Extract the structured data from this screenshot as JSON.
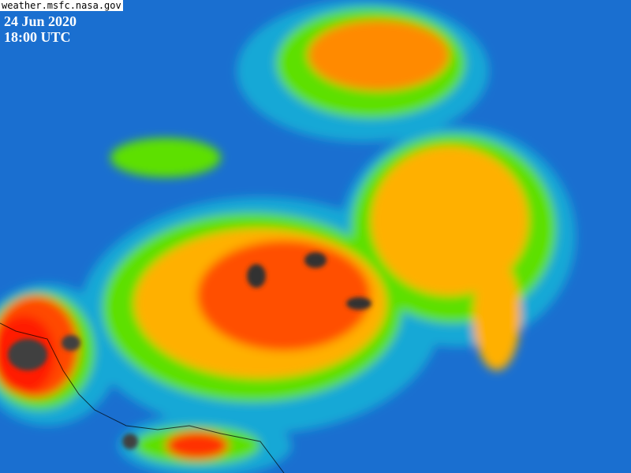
{
  "source_credit": "weather.msfc.nasa.gov",
  "date": "24 Jun 2020",
  "time": "18:00 UTC",
  "colors": {
    "ocean_clear": "#1a6fd0",
    "low_cloud": "#16b0d8",
    "mid_cloud": "#5de000",
    "high_cloud": "#ffd800",
    "cold_top": "#ff5a00",
    "coldest": "#ff1a00",
    "overshoot": "#303030"
  }
}
